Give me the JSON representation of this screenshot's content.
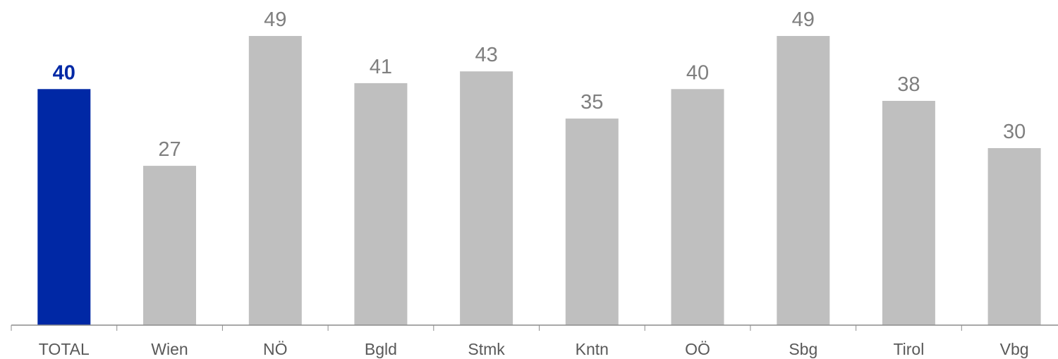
{
  "chart_data": {
    "type": "bar",
    "title": "",
    "xlabel": "",
    "ylabel": "",
    "categories": [
      "TOTAL",
      "Wien",
      "NÖ",
      "Bgld",
      "Stmk",
      "Kntn",
      "OÖ",
      "Sbg",
      "Tirol",
      "Vbg"
    ],
    "values": [
      40,
      27,
      49,
      41,
      43,
      35,
      40,
      49,
      38,
      30
    ],
    "value_labels": [
      "40",
      "27",
      "49",
      "41",
      "43",
      "35",
      "40",
      "49",
      "38",
      "30"
    ],
    "highlight_index": 0,
    "ylim": [
      0,
      49
    ],
    "grid": false,
    "legend": "none",
    "colors": {
      "highlight_bar": "#0028a5",
      "bar": "#bfbfbf",
      "highlight_label": "#0028a5",
      "label": "#7f7f7f",
      "axis": "#8c8c8c",
      "category_label": "#595959"
    }
  }
}
